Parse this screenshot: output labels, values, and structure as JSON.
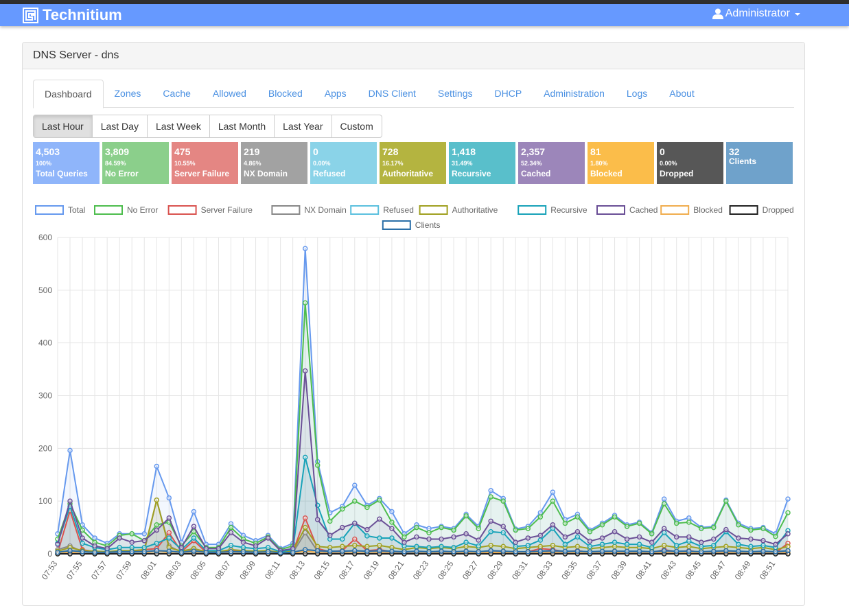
{
  "app": {
    "brand": "Technitium",
    "user": "Administrator"
  },
  "panel": {
    "title": "DNS Server - dns"
  },
  "tabs": [
    {
      "label": "Dashboard",
      "active": true
    },
    {
      "label": "Zones"
    },
    {
      "label": "Cache"
    },
    {
      "label": "Allowed"
    },
    {
      "label": "Blocked"
    },
    {
      "label": "Apps"
    },
    {
      "label": "DNS Client"
    },
    {
      "label": "Settings"
    },
    {
      "label": "DHCP"
    },
    {
      "label": "Administration"
    },
    {
      "label": "Logs"
    },
    {
      "label": "About"
    }
  ],
  "ranges": [
    {
      "label": "Last Hour",
      "active": true
    },
    {
      "label": "Last Day"
    },
    {
      "label": "Last Week"
    },
    {
      "label": "Last Month"
    },
    {
      "label": "Last Year"
    },
    {
      "label": "Custom"
    }
  ],
  "stats": [
    {
      "value": "4,503",
      "percent": "100%",
      "label": "Total Queries",
      "color": "#8fb5fa"
    },
    {
      "value": "3,809",
      "percent": "84.59%",
      "label": "No Error",
      "color": "#8bcf8b"
    },
    {
      "value": "475",
      "percent": "10.55%",
      "label": "Server Failure",
      "color": "#e48683"
    },
    {
      "value": "219",
      "percent": "4.86%",
      "label": "NX Domain",
      "color": "#a2a2a2"
    },
    {
      "value": "0",
      "percent": "0.00%",
      "label": "Refused",
      "color": "#8ad3e8"
    },
    {
      "value": "728",
      "percent": "16.17%",
      "label": "Authoritative",
      "color": "#b4b440"
    },
    {
      "value": "1,418",
      "percent": "31.49%",
      "label": "Recursive",
      "color": "#59bfcb"
    },
    {
      "value": "2,357",
      "percent": "52.34%",
      "label": "Cached",
      "color": "#9c86ba"
    },
    {
      "value": "81",
      "percent": "1.80%",
      "label": "Blocked",
      "color": "#fbbd4a"
    },
    {
      "value": "0",
      "percent": "0.00%",
      "label": "Dropped",
      "color": "#575757"
    },
    {
      "value": "32",
      "percent": "",
      "label": "Clients",
      "color": "#6fa2cb"
    }
  ],
  "chart_data": {
    "type": "line",
    "ylim": [
      0,
      600
    ],
    "yticks": [
      0,
      100,
      200,
      300,
      400,
      500,
      600
    ],
    "grid": true,
    "legend": "top",
    "x": [
      "07:53",
      "07:54",
      "07:55",
      "07:56",
      "07:57",
      "07:58",
      "07:59",
      "08:00",
      "08:01",
      "08:02",
      "08:03",
      "08:04",
      "08:05",
      "08:06",
      "08:07",
      "08:08",
      "08:09",
      "08:10",
      "08:11",
      "08:12",
      "08:13",
      "08:14",
      "08:15",
      "08:16",
      "08:17",
      "08:18",
      "08:19",
      "08:20",
      "08:21",
      "08:22",
      "08:23",
      "08:24",
      "08:25",
      "08:26",
      "08:27",
      "08:28",
      "08:29",
      "08:30",
      "08:31",
      "08:32",
      "08:33",
      "08:34",
      "08:35",
      "08:36",
      "08:37",
      "08:38",
      "08:39",
      "08:40",
      "08:41",
      "08:42",
      "08:43",
      "08:44",
      "08:45",
      "08:46",
      "08:47",
      "08:48",
      "08:49",
      "08:50",
      "08:51",
      "08:52"
    ],
    "xtick_labels": [
      "07:53",
      "07:55",
      "07:57",
      "07:59",
      "08:01",
      "08:03",
      "08:05",
      "08:07",
      "08:09",
      "08:11",
      "08:13",
      "08:15",
      "08:17",
      "08:19",
      "08:21",
      "08:23",
      "08:25",
      "08:27",
      "08:29",
      "08:31",
      "08:33",
      "08:35",
      "08:37",
      "08:39",
      "08:41",
      "08:43",
      "08:45",
      "08:47",
      "08:49",
      "08:51"
    ],
    "series": [
      {
        "name": "Total",
        "color": "#6699ee",
        "values": [
          38,
          196,
          55,
          30,
          20,
          38,
          38,
          38,
          166,
          106,
          22,
          80,
          18,
          18,
          57,
          35,
          25,
          35,
          10,
          20,
          579,
          175,
          78,
          90,
          130,
          92,
          105,
          80,
          38,
          55,
          48,
          52,
          48,
          75,
          52,
          120,
          105,
          47,
          52,
          78,
          117,
          65,
          75,
          45,
          58,
          73,
          55,
          60,
          40,
          104,
          62,
          68,
          50,
          52,
          102,
          58,
          48,
          50,
          38,
          104
        ]
      },
      {
        "name": "No Error",
        "color": "#4dbd4d",
        "values": [
          28,
          95,
          45,
          22,
          15,
          35,
          38,
          25,
          55,
          60,
          15,
          42,
          12,
          12,
          50,
          28,
          20,
          32,
          8,
          15,
          476,
          168,
          62,
          85,
          100,
          88,
          102,
          60,
          32,
          50,
          40,
          50,
          45,
          72,
          48,
          108,
          100,
          45,
          48,
          70,
          100,
          58,
          70,
          42,
          55,
          70,
          52,
          58,
          38,
          95,
          58,
          60,
          48,
          50,
          100,
          55,
          45,
          48,
          33,
          78
        ]
      },
      {
        "name": "Server Failure",
        "color": "#d9534f",
        "values": [
          2,
          82,
          8,
          4,
          2,
          4,
          5,
          8,
          10,
          40,
          4,
          25,
          3,
          3,
          6,
          4,
          3,
          5,
          2,
          3,
          68,
          10,
          4,
          6,
          28,
          6,
          8,
          4,
          2,
          3,
          3,
          4,
          3,
          5,
          3,
          6,
          5,
          3,
          4,
          10,
          8,
          4,
          6,
          3,
          4,
          5,
          3,
          4,
          2,
          8,
          4,
          6,
          3,
          3,
          5,
          4,
          3,
          3,
          2,
          20
        ]
      },
      {
        "name": "NX Domain",
        "color": "#888888",
        "values": [
          8,
          15,
          4,
          3,
          2,
          3,
          3,
          5,
          102,
          15,
          3,
          8,
          2,
          2,
          4,
          3,
          2,
          3,
          1,
          2,
          40,
          5,
          3,
          4,
          6,
          4,
          5,
          3,
          2,
          3,
          2,
          3,
          2,
          4,
          3,
          5,
          4,
          3,
          3,
          5,
          4,
          3,
          4,
          2,
          3,
          4,
          3,
          3,
          2,
          4,
          3,
          4,
          2,
          3,
          4,
          3,
          2,
          3,
          2,
          5
        ]
      },
      {
        "name": "Refused",
        "color": "#5bc0de",
        "values": [
          0,
          0,
          0,
          0,
          0,
          0,
          0,
          0,
          0,
          0,
          0,
          0,
          0,
          0,
          0,
          0,
          0,
          0,
          0,
          0,
          0,
          0,
          0,
          0,
          0,
          0,
          0,
          0,
          0,
          0,
          0,
          0,
          0,
          0,
          0,
          0,
          0,
          0,
          0,
          0,
          0,
          0,
          0,
          0,
          0,
          0,
          0,
          0,
          0,
          0,
          0,
          0,
          0,
          0,
          0,
          0,
          0,
          0,
          0,
          0
        ]
      },
      {
        "name": "Authoritative",
        "color": "#a0a020",
        "values": [
          5,
          12,
          6,
          5,
          4,
          6,
          6,
          8,
          102,
          12,
          5,
          10,
          4,
          4,
          8,
          6,
          5,
          6,
          3,
          5,
          50,
          14,
          12,
          14,
          16,
          14,
          16,
          12,
          8,
          12,
          10,
          12,
          10,
          14,
          12,
          16,
          14,
          10,
          12,
          14,
          16,
          12,
          14,
          10,
          12,
          14,
          12,
          12,
          10,
          16,
          12,
          14,
          10,
          12,
          14,
          12,
          10,
          12,
          8,
          14
        ]
      },
      {
        "name": "Recursive",
        "color": "#17a2b8",
        "values": [
          20,
          90,
          20,
          12,
          8,
          12,
          12,
          12,
          20,
          30,
          8,
          30,
          6,
          6,
          16,
          12,
          10,
          12,
          4,
          8,
          183,
          92,
          28,
          28,
          58,
          34,
          30,
          30,
          15,
          14,
          12,
          14,
          12,
          22,
          15,
          42,
          40,
          14,
          16,
          26,
          48,
          18,
          32,
          14,
          18,
          22,
          18,
          18,
          12,
          40,
          16,
          24,
          14,
          16,
          42,
          18,
          14,
          16,
          12,
          44
        ]
      },
      {
        "name": "Cached",
        "color": "#6a4f96",
        "values": [
          18,
          100,
          30,
          15,
          10,
          30,
          22,
          25,
          45,
          68,
          12,
          52,
          10,
          10,
          40,
          22,
          15,
          30,
          6,
          10,
          347,
          65,
          35,
          50,
          58,
          46,
          66,
          48,
          22,
          32,
          28,
          28,
          32,
          38,
          26,
          62,
          52,
          22,
          30,
          35,
          55,
          32,
          42,
          24,
          30,
          42,
          28,
          32,
          22,
          48,
          32,
          32,
          22,
          28,
          46,
          30,
          28,
          25,
          18,
          38
        ]
      },
      {
        "name": "Blocked",
        "color": "#f0ad4e",
        "values": [
          0,
          4,
          0,
          0,
          0,
          0,
          0,
          1,
          6,
          2,
          0,
          2,
          0,
          0,
          1,
          0,
          0,
          1,
          0,
          0,
          6,
          2,
          1,
          1,
          2,
          1,
          2,
          1,
          0,
          1,
          1,
          1,
          1,
          2,
          1,
          3,
          2,
          1,
          1,
          2,
          2,
          1,
          2,
          1,
          1,
          2,
          1,
          1,
          1,
          2,
          1,
          2,
          1,
          1,
          2,
          1,
          1,
          1,
          1,
          2
        ]
      },
      {
        "name": "Dropped",
        "color": "#222222",
        "values": [
          0,
          0,
          0,
          0,
          0,
          0,
          0,
          0,
          0,
          0,
          0,
          0,
          0,
          0,
          0,
          0,
          0,
          0,
          0,
          0,
          0,
          0,
          0,
          0,
          0,
          0,
          0,
          0,
          0,
          0,
          0,
          0,
          0,
          0,
          0,
          0,
          0,
          0,
          0,
          0,
          0,
          0,
          0,
          0,
          0,
          0,
          0,
          0,
          0,
          0,
          0,
          0,
          0,
          0,
          0,
          0,
          0,
          0,
          0,
          0
        ]
      },
      {
        "name": "Clients",
        "color": "#2a6fa8",
        "values": [
          3,
          6,
          4,
          3,
          3,
          4,
          4,
          4,
          6,
          5,
          3,
          5,
          3,
          3,
          4,
          4,
          3,
          4,
          2,
          3,
          8,
          6,
          5,
          5,
          6,
          5,
          6,
          5,
          4,
          5,
          4,
          5,
          4,
          5,
          4,
          6,
          5,
          4,
          4,
          5,
          6,
          5,
          5,
          4,
          5,
          5,
          5,
          5,
          4,
          6,
          5,
          5,
          4,
          5,
          6,
          5,
          4,
          5,
          4,
          6
        ]
      }
    ]
  }
}
